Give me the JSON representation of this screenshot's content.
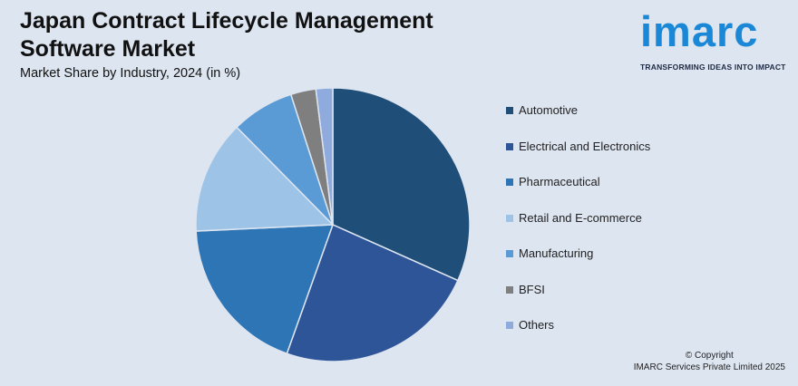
{
  "header": {
    "title": "Japan Contract Lifecycle Management Software Market",
    "subtitle": "Market Share by Industry, 2024 (in %)"
  },
  "logo": {
    "word": "imarc",
    "tagline": "TRANSFORMING IDEAS INTO IMPACT",
    "color": "#1a88d6"
  },
  "chart_data": {
    "type": "pie",
    "title": "Japan Contract Lifecycle Management Software Market",
    "subtitle": "Market Share by Industry, 2024 (in %)",
    "legend_position": "right",
    "start_angle": "12 o'clock, clockwise",
    "slices": [
      {
        "label": "Automotive",
        "value": 32,
        "color": "#1f4e79"
      },
      {
        "label": "Electrical and Electronics",
        "value": 24,
        "color": "#2e5597"
      },
      {
        "label": "Pharmaceutical",
        "value": 19,
        "color": "#2e75b6"
      },
      {
        "label": "Retail and E-commerce",
        "value": 13.5,
        "color": "#9dc3e6"
      },
      {
        "label": "Manufacturing",
        "value": 7.5,
        "color": "#5b9bd5"
      },
      {
        "label": "BFSI",
        "value": 3,
        "color": "#7f7f7f"
      },
      {
        "label": "Others",
        "value": 2,
        "color": "#8faadc"
      }
    ]
  },
  "footer": {
    "copyright_line1": "© Copyright",
    "copyright_line2": "IMARC Services Private Limited 2025"
  }
}
